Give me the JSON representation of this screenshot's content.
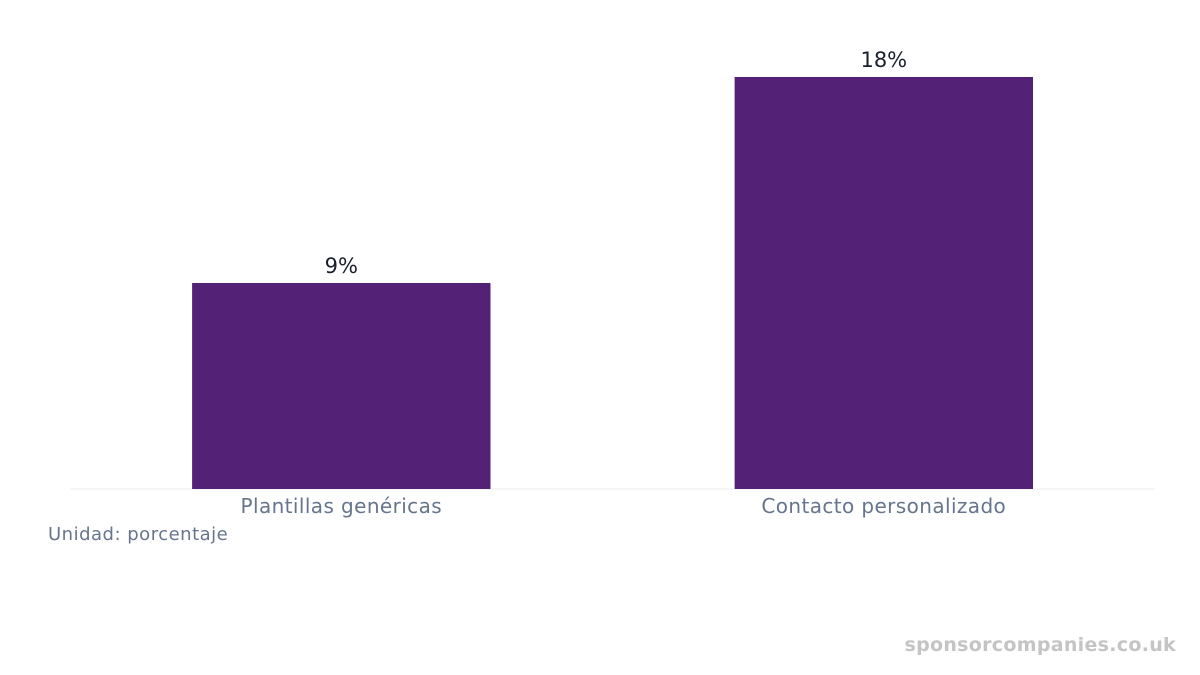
{
  "chart_data": {
    "type": "bar",
    "categories": [
      "Plantillas genéricas",
      "Contacto personalizado"
    ],
    "values": [
      9,
      18
    ],
    "data_labels": [
      "9%",
      "18%"
    ],
    "ylim": [
      0,
      18
    ],
    "grid": false,
    "legend": "none",
    "colors": {
      "bar": "#532277",
      "baseline": "#eeeeee",
      "tick_label": "#66758c",
      "data_label": "#1a1f2e"
    }
  },
  "footer": {
    "unit_note": "Unidad: porcentaje",
    "watermark": "sponsorcompanies.co.uk"
  }
}
